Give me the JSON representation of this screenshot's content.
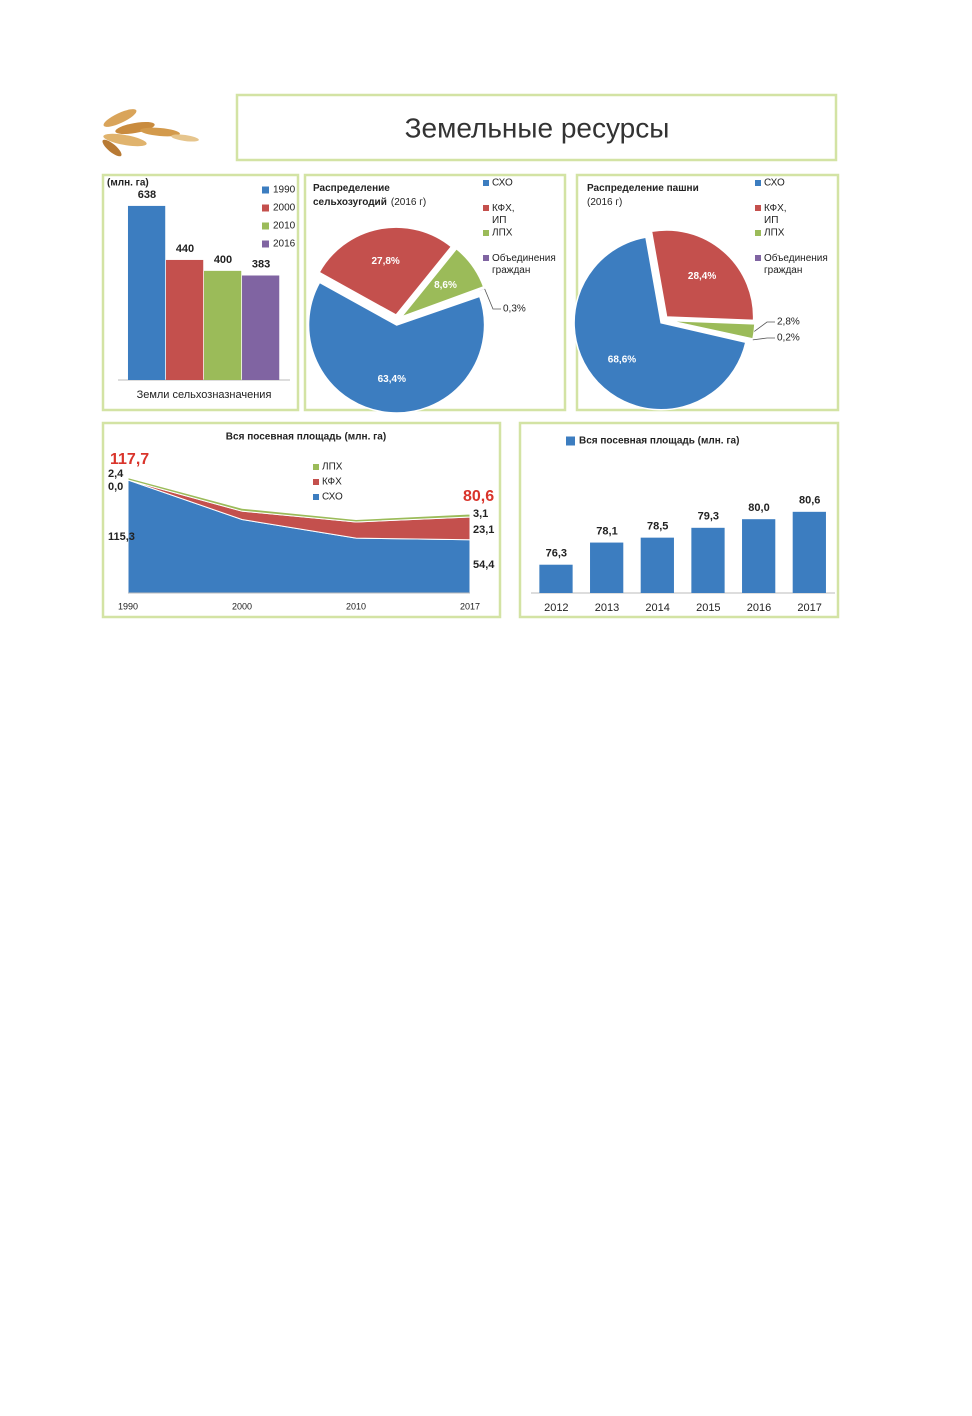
{
  "header": {
    "title": "Земельные ресурсы"
  },
  "chart_data": [
    {
      "type": "bar",
      "y_label": "(млн. га)",
      "categories": [
        "Земли сельхозназначения"
      ],
      "series": [
        {
          "name": "1990",
          "color": "#3c7dc0",
          "values": [
            638
          ]
        },
        {
          "name": "2000",
          "color": "#c4504d",
          "values": [
            440
          ]
        },
        {
          "name": "2010",
          "color": "#9bbb59",
          "values": [
            400
          ]
        },
        {
          "name": "2016",
          "color": "#8064a2",
          "values": [
            383
          ]
        }
      ],
      "ylim": [
        0,
        700
      ],
      "legend": "right"
    },
    {
      "type": "pie",
      "title": "Распределение сельхозугодий",
      "subtitle": "(2016 г)",
      "categories": [
        "СХО",
        "КФХ, ИП",
        "ЛПХ",
        "Объединения граждан"
      ],
      "values": [
        63.4,
        27.8,
        8.6,
        0.3
      ],
      "value_labels": [
        "63,4%",
        "27,8%",
        "8,6%",
        "0,3%"
      ],
      "colors": [
        "#3c7dc0",
        "#c4504d",
        "#9bbb59",
        "#8064a2"
      ],
      "legend": "right"
    },
    {
      "type": "pie",
      "title": "Распределение пашни",
      "subtitle": "(2016 г)",
      "categories": [
        "СХО",
        "КФХ, ИП",
        "ЛПХ",
        "Объединения граждан"
      ],
      "values": [
        68.6,
        28.4,
        2.8,
        0.2
      ],
      "value_labels": [
        "68,6%",
        "28,4%",
        "2,8%",
        "0,2%"
      ],
      "colors": [
        "#3c7dc0",
        "#c4504d",
        "#9bbb59",
        "#8064a2"
      ],
      "legend": "right"
    },
    {
      "type": "area",
      "title": "Вся посевная площадь (млн. га)",
      "categories": [
        "1990",
        "2000",
        "2010",
        "2017"
      ],
      "series": [
        {
          "name": "СХО",
          "color": "#3c7dc0",
          "values": [
            115.3,
            75,
            56,
            54.4
          ],
          "value_labels": [
            "115,3",
            null,
            null,
            "54,4"
          ]
        },
        {
          "name": "КФХ",
          "color": "#c4504d",
          "values": [
            0.0,
            8.5,
            16.5,
            23.1
          ],
          "value_labels": [
            "0,0",
            null,
            null,
            "23,1"
          ]
        },
        {
          "name": "ЛПХ",
          "color": "#9bbb59",
          "values": [
            2.4,
            3,
            2.5,
            3.1
          ],
          "value_labels": [
            "2,4",
            null,
            null,
            "3,1"
          ]
        }
      ],
      "totals": [
        117.7,
        null,
        null,
        80.6
      ],
      "total_labels": [
        "117,7",
        null,
        null,
        "80,6"
      ],
      "ylim": [
        0,
        125
      ],
      "stacked": true,
      "legend": "top"
    },
    {
      "type": "bar",
      "categories": [
        "2012",
        "2013",
        "2014",
        "2015",
        "2016",
        "2017"
      ],
      "series": [
        {
          "name": "Вся посевная площадь (млн. га)",
          "color": "#3c7dc0",
          "values": [
            76.3,
            78.1,
            78.5,
            79.3,
            80.0,
            80.6
          ],
          "value_labels": [
            "76,3",
            "78,1",
            "78,5",
            "79,3",
            "80,0",
            "80,6"
          ]
        }
      ],
      "ylim": [
        74,
        84
      ],
      "legend": "top"
    }
  ]
}
